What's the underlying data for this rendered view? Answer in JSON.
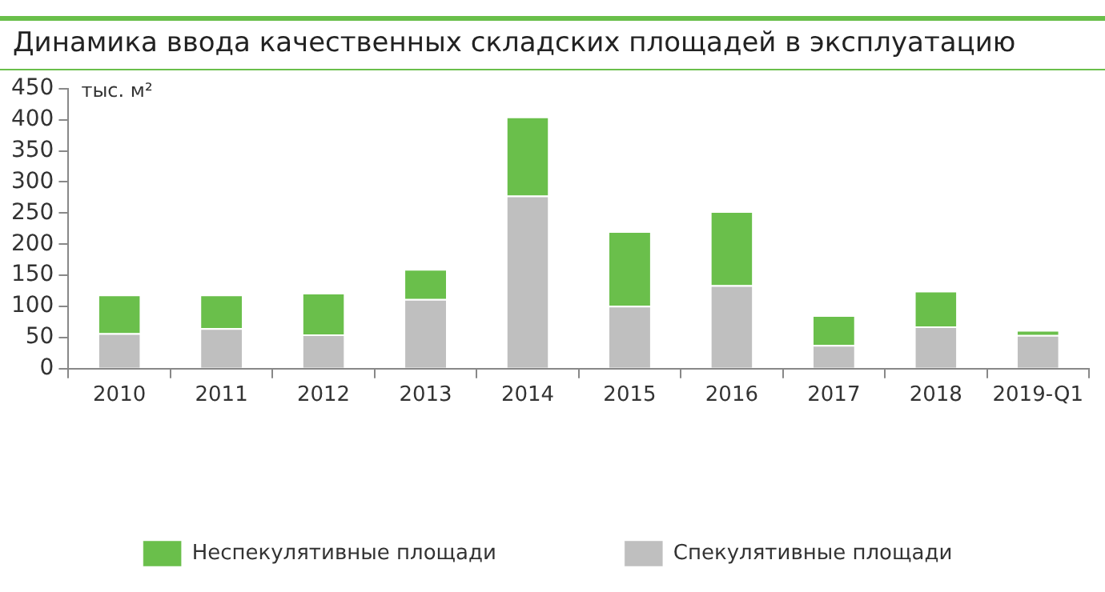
{
  "chart_data": {
    "type": "bar",
    "title": "Динамика ввода качественных складских площадей в эксплуатацию",
    "ylabel": "тыс. м²",
    "categories": [
      "2010",
      "2011",
      "2012",
      "2013",
      "2014",
      "2015",
      "2016",
      "2017",
      "2018",
      "2019-Q1"
    ],
    "series": [
      {
        "name": "Спекулятивные площади",
        "color": "#bfbfbf",
        "values": [
          57,
          65,
          55,
          112,
          278,
          101,
          134,
          38,
          68,
          54
        ]
      },
      {
        "name": "Неспекулятивные площади",
        "color": "#6abf4b",
        "values": [
          62,
          54,
          67,
          48,
          127,
          120,
          119,
          48,
          57,
          8
        ]
      }
    ],
    "stacked": true,
    "ylim": [
      0,
      450
    ],
    "yticks": [
      0,
      50,
      100,
      150,
      200,
      250,
      300,
      350,
      400,
      450
    ],
    "grid": false,
    "legend": "bottom"
  }
}
